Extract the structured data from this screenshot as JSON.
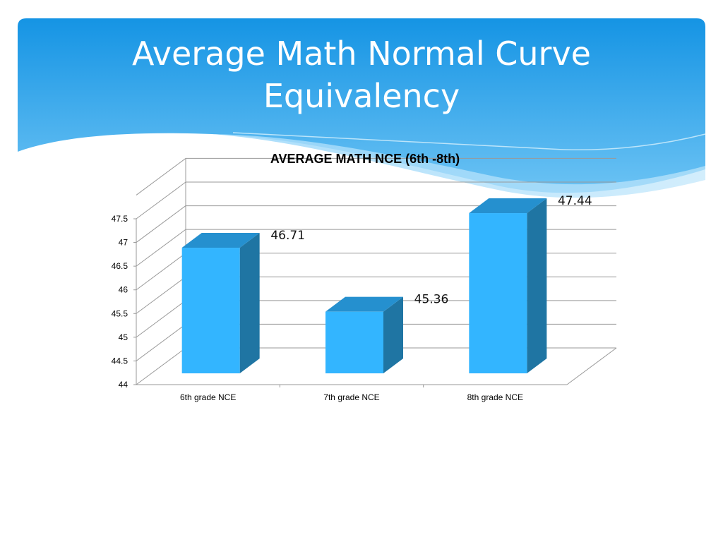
{
  "slide": {
    "title_line1": "Average Math Normal Curve",
    "title_line2": "Equivalency"
  },
  "colors": {
    "bar_front": "#33b5ff",
    "bar_top": "#2590cf",
    "bar_side": "#1f75a3",
    "grid": "#999999",
    "header_top": "#1895e3",
    "header_bottom": "#7cc9f5"
  },
  "chart_data": {
    "type": "bar",
    "title": "AVERAGE MATH NCE (6th -8th)",
    "categories": [
      "6th grade NCE",
      "7th grade NCE",
      "8th grade NCE"
    ],
    "values": [
      46.71,
      45.36,
      47.44
    ],
    "data_labels": [
      "46.71",
      "45.36",
      "47.44"
    ],
    "ylim": [
      44,
      48
    ],
    "yticks": [
      44,
      44.5,
      45,
      45.5,
      46,
      46.5,
      47,
      47.5
    ],
    "ytick_labels": [
      "44",
      "44.5",
      "45",
      "45.5",
      "46",
      "46.5",
      "47",
      "47.5"
    ],
    "grid": true,
    "legend": "none",
    "three_d": true
  }
}
